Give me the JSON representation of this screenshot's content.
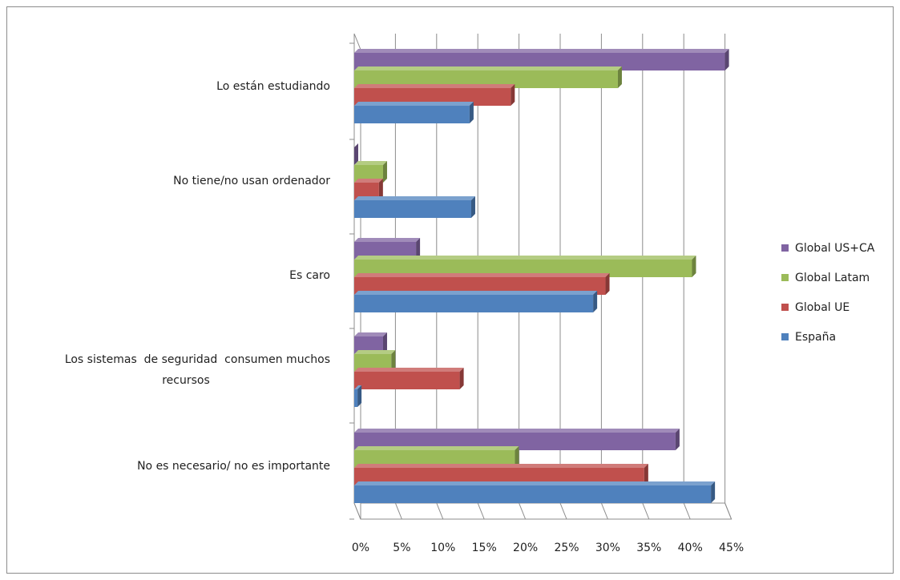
{
  "chart_data": {
    "type": "bar",
    "orientation": "horizontal",
    "three_d": true,
    "title": "",
    "xlabel": "",
    "ylabel": "",
    "xlim": [
      0,
      45
    ],
    "x_ticks": [
      "0%",
      "5%",
      "10%",
      "15%",
      "20%",
      "25%",
      "30%",
      "35%",
      "40%",
      "45%"
    ],
    "grid": true,
    "legend_position": "right",
    "categories": [
      "Lo están estudiando",
      "No tiene/no usan ordenador",
      "Es caro",
      "Los sistemas  de seguridad  consumen muchos recursos",
      "No es necesario/ no es importante"
    ],
    "category_lines": [
      [
        "Lo están estudiando"
      ],
      [
        "No tiene/no usan ordenador"
      ],
      [
        "Es caro"
      ],
      [
        "Los sistemas  de seguridad  consumen muchos",
        "recursos"
      ],
      [
        "No es necesario/ no es importante"
      ]
    ],
    "series": [
      {
        "name": "Global US+CA",
        "color": "#8064a2",
        "values": [
          45,
          0,
          7.5,
          3.5,
          39
        ]
      },
      {
        "name": "Global Latam",
        "color": "#9bbb59",
        "values": [
          32,
          3.5,
          41,
          4.5,
          19.5
        ]
      },
      {
        "name": "Global UE",
        "color": "#c0504d",
        "values": [
          19,
          3,
          30.5,
          12.8,
          35.2
        ]
      },
      {
        "name": "España",
        "color": "#4f81bd",
        "values": [
          14,
          14.2,
          29,
          0.4,
          43.3
        ]
      }
    ]
  }
}
